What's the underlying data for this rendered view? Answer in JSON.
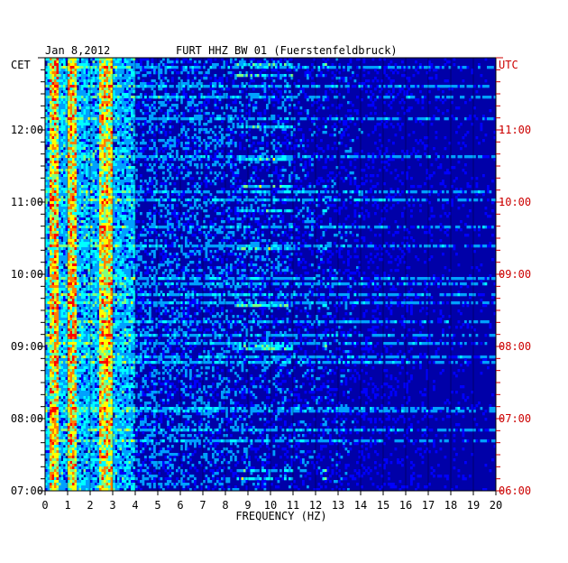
{
  "chart_data": {
    "type": "heatmap",
    "date": "Jan 8,2012",
    "title": "FURT HHZ BW 01 (Fuerstenfeldbruck)",
    "xlabel": "FREQUENCY (HZ)",
    "xlim": [
      0,
      20
    ],
    "x_ticks": [
      "0",
      "1",
      "2",
      "3",
      "4",
      "5",
      "6",
      "7",
      "8",
      "9",
      "10",
      "11",
      "12",
      "13",
      "14",
      "15",
      "16",
      "17",
      "18",
      "19",
      "20"
    ],
    "left_axis": {
      "label": "CET",
      "ticks": [
        "12:00",
        "11:00",
        "10:00",
        "09:00",
        "08:00",
        "07:00"
      ]
    },
    "right_axis": {
      "label": "UTC",
      "ticks": [
        "11:00",
        "10:00",
        "09:00",
        "08:00",
        "07:00",
        "06:00"
      ],
      "color": "#cc0000"
    },
    "time_range_cet": [
      "07:00",
      "13:00"
    ],
    "colormap": [
      "#000080",
      "#0000ff",
      "#00a0ff",
      "#00ffff",
      "#80ff80",
      "#ffff00",
      "#ff8000",
      "#ff0000"
    ],
    "dominant_bands_hz": [
      [
        0.2,
        0.6
      ],
      [
        1.0,
        1.4
      ],
      [
        2.4,
        3.0
      ]
    ],
    "intermittent_bands_hz": [
      [
        8.5,
        11.0
      ],
      [
        9.5,
        11.0
      ],
      [
        12.3,
        12.5
      ]
    ]
  }
}
